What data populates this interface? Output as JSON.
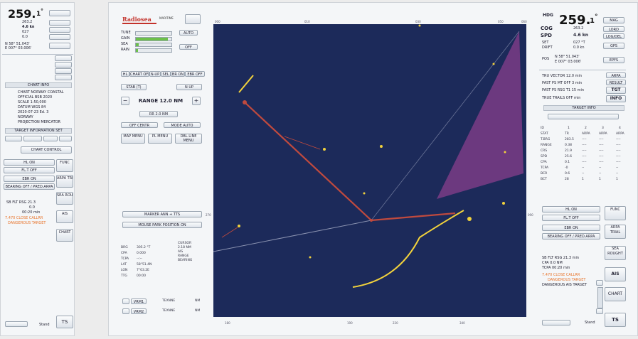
{
  "left_fragment": {
    "heading_value": "259.",
    "heading_decimal": "1",
    "heading_deg": "°",
    "lines": [
      "263.2",
      "4.6 kn",
      "027",
      "0.0",
      "N 58° 51.043'",
      "E 007° 03.006'"
    ],
    "chart_info_title": "CHART INFO",
    "chart_info_lines": [
      "CHART NORWAY COASTAL",
      "OFFICIAL BSB 2020",
      "SCALE 1:50,000",
      "DATUM WGS 84",
      "2020-07-23 Ed. 3",
      "NORWAY",
      "PROJECTION MERCATOR"
    ],
    "target_info_title": "TARGET INFORMATION SET",
    "buttons": [
      "CHART CONTROL",
      "HL ON",
      "FL.T OFF",
      "EBR ON",
      "BEARING OFF / PRED.ARPA",
      "FUNC",
      "ARPA TRIAL"
    ],
    "side_buttons": [
      "SEA ROUGHT",
      "AIS",
      "CHART"
    ],
    "bottom_label": "Stand",
    "ts_label": "TS",
    "alert_lines": [
      "7.470 CLOSE CALLRR",
      "DANGEROUS TARGET"
    ]
  },
  "radar_panel": {
    "logo_text": "Radiosea",
    "logo_sub": "MARITIME",
    "left_controls": {
      "labels": [
        "TUNE",
        "GAIN",
        "SEA",
        "RAIN"
      ],
      "auto_label": "AUTO",
      "off_label": "OFF",
      "mode_bar": [
        "HL",
        "CHART OFF",
        "N-UP",
        "SEL",
        "BR ON",
        "EBR OFF"
      ],
      "stab_label": "STAB (T)",
      "nup_label": "N UP",
      "range_minus": "−",
      "range_label": "RANGE 12.0 NM",
      "range_plus": "+",
      "rings_label": "RR 2.0 NM",
      "off_buttons": [
        "OFF CENTR",
        "MODE AUTO"
      ],
      "menu_buttons": [
        "MAP MENU",
        "PL MENU",
        "DBL LINE MENU"
      ],
      "bottom_buttons": [
        "MARKER ANN + TTS",
        "MOUSE PARK POSITION ON"
      ],
      "readouts": [
        [
          "BRG",
          "305.2 °T",
          "CURSOR",
          "2.18 NM"
        ],
        [
          "CPA",
          "0.000",
          "AIS"
        ],
        [
          "TCPA",
          "--:--",
          "RANGE"
        ],
        [
          "LAT",
          "58°51.4N",
          "BEARING"
        ],
        [
          "LON",
          "7°03.2E"
        ],
        [
          "TTG",
          "00:00"
        ]
      ],
      "vrm_rows": [
        [
          "VRM1",
          "TEXNNE",
          "NM"
        ],
        [
          "VRM2",
          "TEXNNE",
          "NM"
        ]
      ]
    },
    "right_controls": {
      "hdg_label": "HDG",
      "hdg_value": "259.",
      "hdg_decimal": "1",
      "hdg_deg": "°",
      "hdg_btn": "MAG",
      "cog_label": "COG",
      "cog_value": "263.2",
      "cog_btn": "LORD",
      "spd_label": "SPD",
      "spd_value": "4.6 kn",
      "spd_btn": "LOG/DEL",
      "set_label": "SET",
      "set_value": "027 °T",
      "drift_label": "DRIFT",
      "drift_value": "0.0 kn",
      "gps_btn": "GPS",
      "pos_label": "POS",
      "pos_lat": "N 58° 51.043'",
      "pos_lon": "E 007° 03.006'",
      "epfs_btn": "EPFS",
      "vector_label": "TRU VECTOR 12.0 min",
      "vector_btn": "ARPA",
      "past_pos_label": "PAST PS MT OFF 3 min",
      "past_btn": "RESULT",
      "past_pos2_label": "PAST PS RSG T1 15 min",
      "tgt_btn": "TGT",
      "trails_label": "TRUE TRAILS OFF min",
      "info_btn": "INFO",
      "target_info_title": "TARGET INFO",
      "table_header": [
        "ID",
        "1",
        "2",
        "3",
        "4"
      ],
      "table_rows": [
        [
          "STAT",
          "TR",
          "ARPA",
          "ARPA",
          "ARPA"
        ],
        [
          "T.BRG",
          "283.5",
          "----",
          "----",
          "----"
        ],
        [
          "RANGE",
          "0.38",
          "----",
          "----",
          "----"
        ],
        [
          "CRS",
          "21.9",
          "----",
          "----",
          "----"
        ],
        [
          "SPD",
          "25.6",
          "----",
          "----",
          "----"
        ],
        [
          "CPA",
          "0.1",
          "----",
          "----",
          "----"
        ],
        [
          "TCPA",
          "-0",
          "--",
          "--",
          "--"
        ],
        [
          "BCR",
          "0.6",
          "--",
          "--",
          "--"
        ],
        [
          "BCT",
          "28",
          "1",
          "1",
          "1"
        ]
      ],
      "buttons": [
        "HL ON",
        "FL.T OFF",
        "EBR ON",
        "BEARING OFF / PRED.ARPA"
      ],
      "side_buttons": [
        "FUNC",
        "ARPA TRIAL",
        "SEA ROUGHT",
        "AIS",
        "CHART",
        "TS"
      ],
      "status_lines": [
        "SB FLT RSG  21.3 min",
        "CPA  0.0 NM",
        "TCPA  00:20 min"
      ],
      "alert_lines": [
        "7.470 CLOSE CALLRR",
        "DANGEROUS TARGET",
        "DANGEROUS AIS TARGET"
      ],
      "bottom_label": "Stand"
    },
    "scale_top": [
      "000",
      "010",
      "030",
      "050",
      "060"
    ],
    "scale_bottom": [
      "180",
      "190",
      "220",
      "340"
    ],
    "scale_left": [
      "270"
    ],
    "scale_right": [
      "090"
    ]
  },
  "colors": {
    "radar_background": "#1c2a5a",
    "echo_yellow": "#f2d23c",
    "trail_red": "#c04a3e",
    "sector_purple": "#7a3c86",
    "heading_line": "#8a92b0",
    "alert_orange": "#e8742b"
  }
}
